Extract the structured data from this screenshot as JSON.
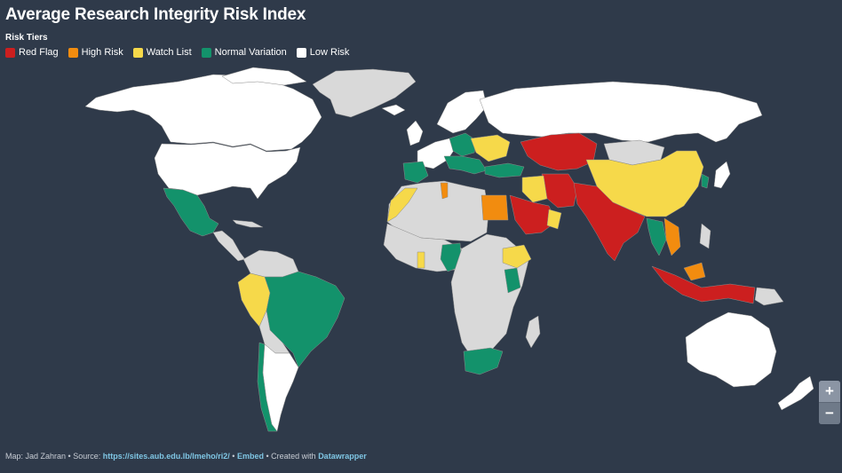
{
  "title": "Average Research Integrity Risk Index",
  "legend": {
    "heading": "Risk Tiers",
    "items": [
      {
        "label": "Red Flag",
        "color": "#cc1f1f"
      },
      {
        "label": "High Risk",
        "color": "#f28c0f"
      },
      {
        "label": "Watch List",
        "color": "#f6d94a"
      },
      {
        "label": "Normal Variation",
        "color": "#13926b"
      },
      {
        "label": "Low Risk",
        "color": "#ffffff"
      }
    ]
  },
  "map_colors": {
    "ocean": "#2f3a4a",
    "no_data": "#d9d9d9",
    "border": "#8a8a8a"
  },
  "zoom": {
    "in": "+",
    "out": "−"
  },
  "footer": {
    "prefix": "Map: Jad Zahran • Source:",
    "source_link": "https://sites.aub.edu.lb/lmeho/ri2/",
    "sep": "•",
    "embed": "Embed",
    "created": "• Created with",
    "tool": "Datawrapper"
  }
}
